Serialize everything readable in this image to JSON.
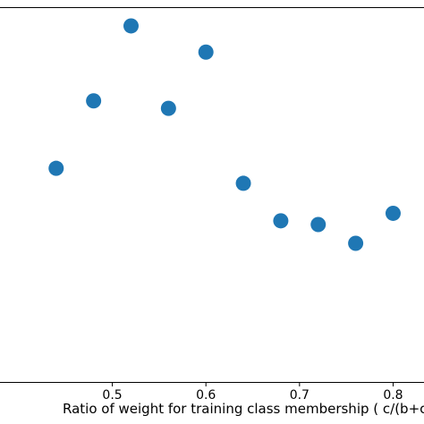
{
  "chart_data": {
    "type": "scatter",
    "title": "",
    "xlabel": "Ratio of weight for training class membership ( c/(b+c",
    "ylabel": "",
    "x_ticks": [
      "0.5",
      "0.6",
      "0.7",
      "0.8"
    ],
    "xlim": [
      0.38,
      0.833
    ],
    "ylim": [
      0,
      1
    ],
    "grid": false,
    "marker_color": "#1f77b4",
    "points": [
      {
        "x": 0.44,
        "y": 0.57
      },
      {
        "x": 0.48,
        "y": 0.75
      },
      {
        "x": 0.52,
        "y": 0.95
      },
      {
        "x": 0.56,
        "y": 0.73
      },
      {
        "x": 0.6,
        "y": 0.88
      },
      {
        "x": 0.64,
        "y": 0.53
      },
      {
        "x": 0.68,
        "y": 0.43
      },
      {
        "x": 0.72,
        "y": 0.42
      },
      {
        "x": 0.76,
        "y": 0.37
      },
      {
        "x": 0.8,
        "y": 0.45
      }
    ]
  }
}
